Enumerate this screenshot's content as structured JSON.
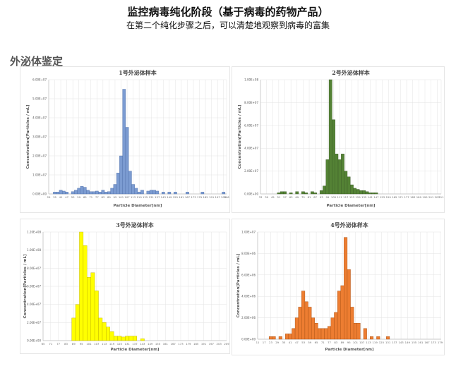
{
  "header": {
    "title": "监控病毒纯化阶段（基于病毒的药物产品）",
    "subtitle": "在第二个纯化步骤之后，可以清楚地观察到病毒的富集"
  },
  "section": {
    "title": "外泌体鉴定"
  },
  "chart_data": [
    {
      "type": "bar",
      "title": "1号外泌体样本",
      "xlabel": "Particle Diameter[nm]",
      "ylabel": "Concentration[Particles / mL]",
      "color": "#7b9bd1",
      "edge_color": "#4f6fa8",
      "xlim": [
        29,
        206
      ],
      "ylim": [
        0,
        60000000.0
      ],
      "yticks": [
        0,
        10000000.0,
        20000000.0,
        30000000.0,
        40000000.0,
        50000000.0,
        60000000.0
      ],
      "ytick_labels": [
        "0.00E+00",
        "1.00E+07",
        "2.00E+07",
        "3.00E+07",
        "4.00E+07",
        "5.00E+07",
        "6.00E+07"
      ],
      "xticks": [
        29,
        35,
        41,
        47,
        53,
        59,
        65,
        71,
        77,
        83,
        89,
        95,
        101,
        107,
        113,
        119,
        125,
        131,
        137,
        143,
        149,
        155,
        161,
        167,
        173,
        179,
        185,
        191,
        197,
        203,
        206
      ],
      "bar_width": 3,
      "bars": [
        [
          35,
          1000000.0
        ],
        [
          38,
          1000000.0
        ],
        [
          41,
          2000000.0
        ],
        [
          44,
          1500000.0
        ],
        [
          47,
          1000000.0
        ],
        [
          53,
          1200000.0
        ],
        [
          56,
          2000000.0
        ],
        [
          59,
          3000000.0
        ],
        [
          62,
          4000000.0
        ],
        [
          65,
          3500000.0
        ],
        [
          68,
          2000000.0
        ],
        [
          71,
          1200000.0
        ],
        [
          74,
          1200000.0
        ],
        [
          77,
          1500000.0
        ],
        [
          80,
          1000000.0
        ],
        [
          83,
          2000000.0
        ],
        [
          86,
          1000000.0
        ],
        [
          89,
          1200000.0
        ],
        [
          92,
          3000000.0
        ],
        [
          95,
          5000000.0
        ],
        [
          98,
          11000000.0
        ],
        [
          101,
          20000000.0
        ],
        [
          104,
          55000000.0
        ],
        [
          107,
          35000000.0
        ],
        [
          110,
          12000000.0
        ],
        [
          113,
          5000000.0
        ],
        [
          116,
          3000000.0
        ],
        [
          119,
          1000000.0
        ],
        [
          122,
          2000000.0
        ],
        [
          128,
          1500000.0
        ],
        [
          131,
          2000000.0
        ],
        [
          134,
          2000000.0
        ],
        [
          137,
          1500000.0
        ],
        [
          143,
          1000000.0
        ],
        [
          149,
          1000000.0
        ],
        [
          155,
          1000000.0
        ],
        [
          167,
          1000000.0
        ],
        [
          182,
          1000000.0
        ],
        [
          203,
          1000000.0
        ]
      ]
    },
    {
      "type": "bar",
      "title": "2号外泌体样本",
      "xlabel": "Particle Diameter[nm]",
      "ylabel": "Concentration[Particles / mL]",
      "color": "#548235",
      "edge_color": "#375623",
      "xlim": [
        33,
        211
      ],
      "ylim": [
        0,
        100000000.0
      ],
      "yticks": [
        0,
        20000000.0,
        40000000.0,
        60000000.0,
        80000000.0,
        100000000.0
      ],
      "ytick_labels": [
        "0.00E+00",
        "2.00E+07",
        "4.00E+07",
        "6.00E+07",
        "8.00E+07",
        "1.00E+08"
      ],
      "xticks": [
        33,
        39,
        45,
        51,
        57,
        63,
        69,
        75,
        81,
        87,
        93,
        99,
        105,
        111,
        117,
        123,
        129,
        135,
        141,
        147,
        153,
        159,
        165,
        171,
        177,
        183,
        189,
        195,
        201,
        207,
        211
      ],
      "bar_width": 3,
      "bars": [
        [
          51,
          1000000.0
        ],
        [
          54,
          2000000.0
        ],
        [
          57,
          2000000.0
        ],
        [
          63,
          1000000.0
        ],
        [
          69,
          2000000.0
        ],
        [
          75,
          2000000.0
        ],
        [
          78,
          1000000.0
        ],
        [
          84,
          2000000.0
        ],
        [
          87,
          1000000.0
        ],
        [
          93,
          3000000.0
        ],
        [
          96,
          7000000.0
        ],
        [
          99,
          30000000.0
        ],
        [
          102,
          100000000.0
        ],
        [
          105,
          65000000.0
        ],
        [
          108,
          35000000.0
        ],
        [
          111,
          30000000.0
        ],
        [
          114,
          35000000.0
        ],
        [
          117,
          20000000.0
        ],
        [
          120,
          15000000.0
        ],
        [
          123,
          8000000.0
        ],
        [
          126,
          5000000.0
        ],
        [
          129,
          4000000.0
        ],
        [
          132,
          3000000.0
        ],
        [
          135,
          3000000.0
        ],
        [
          138,
          2000000.0
        ],
        [
          141,
          1000000.0
        ],
        [
          144,
          1000000.0
        ],
        [
          147,
          1000000.0
        ]
      ]
    },
    {
      "type": "bar",
      "title": "3号外泌体样本",
      "xlabel": "Particle Diameter[nm]",
      "ylabel": "Concentration[Particles / mL]",
      "color": "#ffff00",
      "edge_color": "#b8a800",
      "xlim": [
        65,
        209
      ],
      "ylim": [
        0,
        120000000.0
      ],
      "yticks": [
        0,
        20000000.0,
        40000000.0,
        60000000.0,
        80000000.0,
        100000000.0,
        120000000.0
      ],
      "ytick_labels": [
        "0.00E+00",
        "2.00E+07",
        "4.00E+07",
        "6.00E+07",
        "8.00E+07",
        "1.00E+08",
        "1.20E+08"
      ],
      "xticks": [
        65,
        71,
        77,
        83,
        89,
        95,
        101,
        107,
        113,
        119,
        125,
        131,
        137,
        143,
        149,
        155,
        161,
        167,
        173,
        179,
        185,
        191,
        197,
        203,
        209
      ],
      "bar_width": 3,
      "bars": [
        [
          89,
          25000000.0
        ],
        [
          92,
          40000000.0
        ],
        [
          95,
          120000000.0
        ],
        [
          98,
          105000000.0
        ],
        [
          101,
          70000000.0
        ],
        [
          104,
          75000000.0
        ],
        [
          107,
          55000000.0
        ],
        [
          110,
          25000000.0
        ],
        [
          113,
          20000000.0
        ],
        [
          116,
          15000000.0
        ],
        [
          119,
          10000000.0
        ],
        [
          122,
          5000000.0
        ],
        [
          125,
          5000000.0
        ],
        [
          128,
          4000000.0
        ],
        [
          131,
          5000000.0
        ],
        [
          134,
          5000000.0
        ],
        [
          137,
          5000000.0
        ],
        [
          143,
          2000000.0
        ]
      ]
    },
    {
      "type": "bar",
      "title": "4号外泌体样本",
      "xlabel": "Particle Diameter[nm]",
      "ylabel": "Concentration[Particles / mL]",
      "color": "#ed7d31",
      "edge_color": "#a14d11",
      "xlim": [
        11,
        180
      ],
      "ylim": [
        0,
        10000000.0
      ],
      "yticks": [
        0,
        2000000.0,
        4000000.0,
        6000000.0,
        8000000.0,
        10000000.0
      ],
      "ytick_labels": [
        "0.00E+00",
        "2.00E+06",
        "4.00E+06",
        "6.00E+06",
        "8.00E+06",
        "1.00E+07"
      ],
      "xticks": [
        11,
        17,
        23,
        29,
        35,
        41,
        47,
        53,
        59,
        65,
        71,
        77,
        83,
        89,
        95,
        101,
        107,
        113,
        119,
        125,
        131,
        137,
        143,
        149,
        155,
        161,
        167,
        173,
        179
      ],
      "bar_width": 3,
      "bars": [
        [
          23,
          250000.0
        ],
        [
          26,
          250000.0
        ],
        [
          32,
          250000.0
        ],
        [
          38,
          500000.0
        ],
        [
          41,
          500000.0
        ],
        [
          44,
          1000000.0
        ],
        [
          47,
          2000000.0
        ],
        [
          50,
          3000000.0
        ],
        [
          53,
          4500000.0
        ],
        [
          56,
          3500000.0
        ],
        [
          59,
          3000000.0
        ],
        [
          62,
          2000000.0
        ],
        [
          65,
          1500000.0
        ],
        [
          68,
          1000000.0
        ],
        [
          71,
          1000000.0
        ],
        [
          74,
          1000000.0
        ],
        [
          77,
          1200000.0
        ],
        [
          80,
          2000000.0
        ],
        [
          83,
          2500000.0
        ],
        [
          86,
          4500000.0
        ],
        [
          89,
          5000000.0
        ],
        [
          92,
          9500000.0
        ],
        [
          95,
          6500000.0
        ],
        [
          98,
          3000000.0
        ],
        [
          101,
          1500000.0
        ],
        [
          104,
          1500000.0
        ],
        [
          110,
          1000000.0
        ],
        [
          116,
          250000.0
        ],
        [
          122,
          250000.0
        ],
        [
          131,
          250000.0
        ]
      ]
    }
  ]
}
